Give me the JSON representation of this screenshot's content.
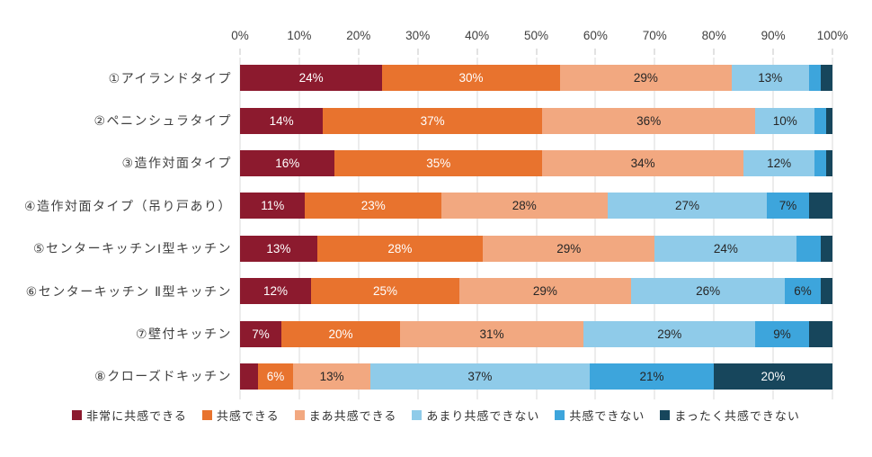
{
  "chart_data": {
    "type": "bar",
    "subtype": "horizontal-stacked-100",
    "title": "",
    "x_axis": {
      "min": 0,
      "max": 100,
      "tick_step": 10,
      "tick_labels": [
        "0%",
        "10%",
        "20%",
        "30%",
        "40%",
        "50%",
        "60%",
        "70%",
        "80%",
        "90%",
        "100%"
      ],
      "position": "top",
      "grid": true
    },
    "categories": [
      "①アイランドタイプ",
      "②ペニンシュラタイプ",
      "③造作対面タイプ",
      "④造作対面タイプ（吊り戸あり）",
      "⑤センターキッチンI型キッチン",
      "⑥センターキッチン Ⅱ型キッチン",
      "⑦壁付キッチン",
      "⑧クローズドキッチン"
    ],
    "series": [
      {
        "name": "非常に共感できる",
        "color": "#8C1A2E",
        "label_color": "#ffffff",
        "values": [
          24,
          14,
          16,
          11,
          13,
          12,
          7,
          3
        ]
      },
      {
        "name": "共感できる",
        "color": "#E8732E",
        "label_color": "#ffffff",
        "values": [
          30,
          37,
          35,
          23,
          28,
          25,
          20,
          6
        ]
      },
      {
        "name": "まあ共感できる",
        "color": "#F2A880",
        "label_color": "#262626",
        "values": [
          29,
          36,
          34,
          28,
          29,
          29,
          31,
          13
        ]
      },
      {
        "name": "あまり共感できない",
        "color": "#8FCBE9",
        "label_color": "#262626",
        "values": [
          13,
          10,
          12,
          27,
          24,
          26,
          29,
          37
        ]
      },
      {
        "name": "共感できない",
        "color": "#3DA5DC",
        "label_color": "#262626",
        "values": [
          2,
          2,
          2,
          7,
          4,
          6,
          9,
          21
        ]
      },
      {
        "name": "まったく共感できない",
        "color": "#17465C",
        "label_color": "#ffffff",
        "values": [
          2,
          1,
          1,
          4,
          2,
          2,
          4,
          20
        ]
      }
    ],
    "data_label_suffix": "%",
    "data_label_min_value": 6,
    "legend_position": "bottom"
  },
  "style": {
    "grid_color": "#dadada",
    "tick_color": "#c6c6c6",
    "axis_text_color": "#404040",
    "category_text_color": "#404040",
    "legend_text_color": "#333333",
    "background": "#ffffff"
  }
}
